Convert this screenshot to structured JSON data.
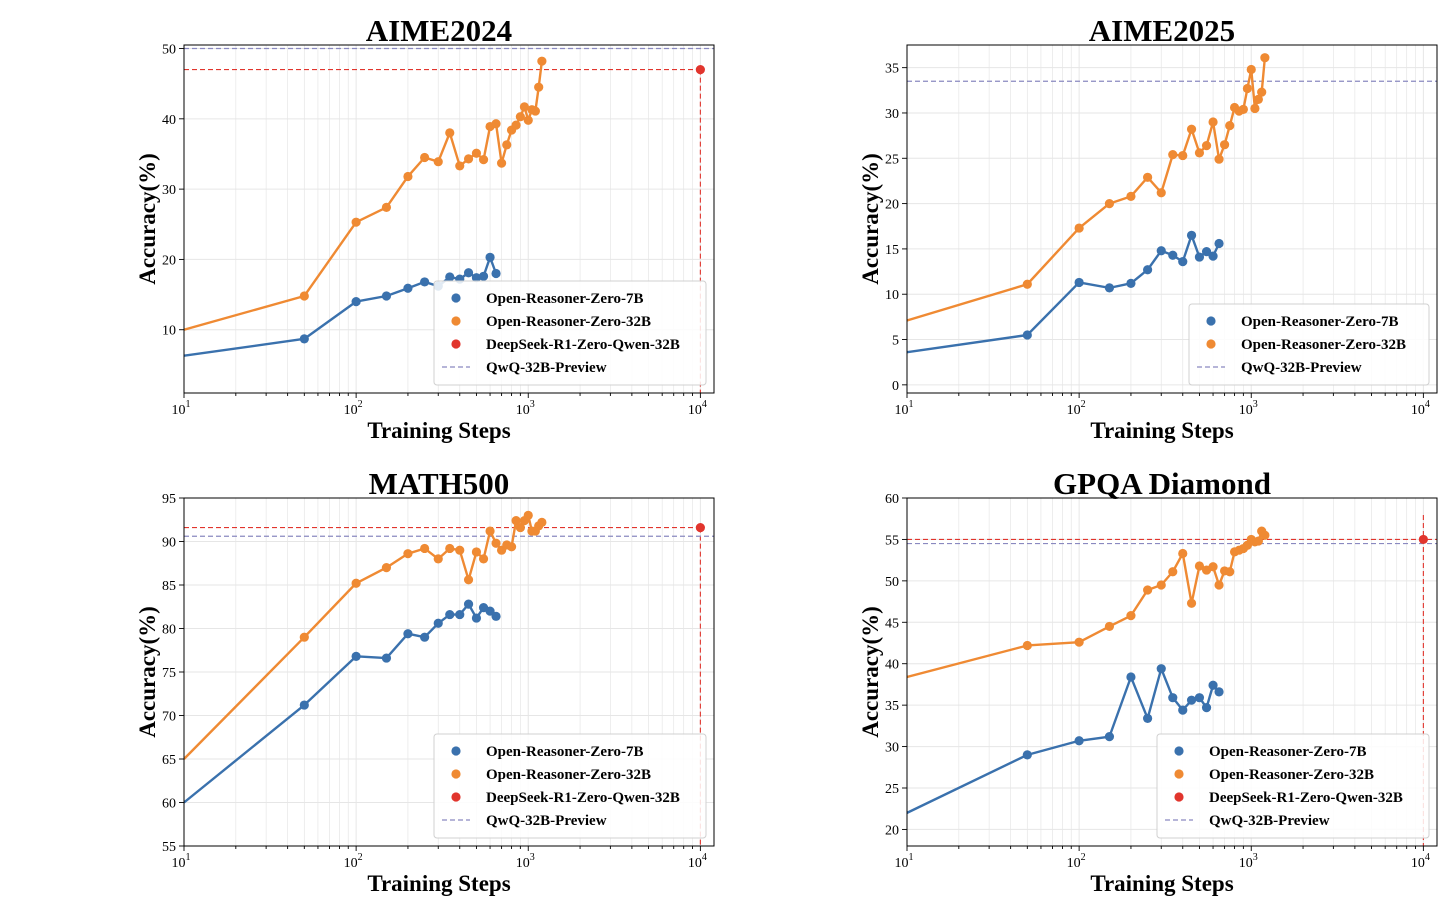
{
  "colors": {
    "blue": "#3a71ad",
    "orange": "#ef8a33",
    "red": "#e1352d",
    "qwq": "#8a89c0",
    "grid": "#e6e6e6"
  },
  "chart_data": [
    {
      "type": "line",
      "title": "AIME2024",
      "xlabel": "Training Steps",
      "ylabel": "Accuracy(%)",
      "xscale": "log",
      "xlim": [
        10,
        12000
      ],
      "ylim": [
        1,
        50.5
      ],
      "yticks": [
        10,
        20,
        30,
        40,
        50
      ],
      "legend_loc": "bottom-right",
      "series": [
        {
          "name": "Open-Reasoner-Zero-7B",
          "color": "blue",
          "start": [
            10,
            6.3
          ],
          "x": [
            50,
            100,
            150,
            200,
            250,
            300,
            350,
            400,
            450,
            500,
            550,
            600,
            650
          ],
          "y": [
            8.7,
            14.0,
            14.8,
            15.9,
            16.8,
            16.2,
            17.5,
            17.2,
            18.1,
            17.4,
            17.6,
            20.3,
            18.0
          ]
        },
        {
          "name": "Open-Reasoner-Zero-32B",
          "color": "orange",
          "start": [
            10,
            10.0
          ],
          "x": [
            50,
            100,
            150,
            200,
            250,
            300,
            350,
            400,
            450,
            500,
            550,
            600,
            650,
            700,
            750,
            800,
            850,
            900,
            950,
            1000,
            1050,
            1100,
            1150,
            1200
          ],
          "y": [
            14.8,
            25.3,
            27.4,
            31.8,
            34.5,
            33.9,
            38.0,
            33.3,
            34.3,
            35.1,
            34.2,
            38.9,
            39.3,
            33.7,
            36.3,
            38.4,
            39.1,
            40.3,
            41.7,
            39.8,
            41.3,
            41.1,
            44.5,
            48.2
          ]
        },
        {
          "name": "DeepSeek-R1-Zero-Qwen-32B",
          "color": "red",
          "x": [
            10000
          ],
          "y": [
            47.0
          ],
          "ref": "both"
        },
        {
          "name": "QwQ-32B-Preview",
          "color": "qwq",
          "hline": 50.0
        }
      ]
    },
    {
      "type": "line",
      "title": "AIME2025",
      "xlabel": "Training Steps",
      "ylabel": "Accuracy(%)",
      "xscale": "log",
      "xlim": [
        10,
        12000
      ],
      "ylim": [
        -0.9,
        37.5
      ],
      "yticks": [
        0,
        5,
        10,
        15,
        20,
        25,
        30,
        35
      ],
      "legend_loc": "bottom-right",
      "series": [
        {
          "name": "Open-Reasoner-Zero-7B",
          "color": "blue",
          "start": [
            10,
            3.6
          ],
          "x": [
            50,
            100,
            150,
            200,
            250,
            300,
            350,
            400,
            450,
            500,
            550,
            600,
            650
          ],
          "y": [
            5.5,
            11.3,
            10.7,
            11.2,
            12.7,
            14.8,
            14.3,
            13.6,
            16.5,
            14.1,
            14.7,
            14.2,
            15.6
          ]
        },
        {
          "name": "Open-Reasoner-Zero-32B",
          "color": "orange",
          "start": [
            10,
            7.1
          ],
          "x": [
            50,
            100,
            150,
            200,
            250,
            300,
            350,
            400,
            450,
            500,
            550,
            600,
            650,
            700,
            750,
            800,
            850,
            900,
            950,
            1000,
            1050,
            1100,
            1150,
            1200
          ],
          "y": [
            11.1,
            17.3,
            20.0,
            20.8,
            22.9,
            21.2,
            25.4,
            25.3,
            28.2,
            25.6,
            26.4,
            29.0,
            24.9,
            26.5,
            28.6,
            30.6,
            30.2,
            30.4,
            32.7,
            34.8,
            30.5,
            31.5,
            32.3,
            36.1
          ]
        },
        {
          "name": "QwQ-32B-Preview",
          "color": "qwq",
          "hline": 33.5
        }
      ]
    },
    {
      "type": "line",
      "title": "MATH500",
      "xlabel": "Training Steps",
      "ylabel": "Accuracy(%)",
      "xscale": "log",
      "xlim": [
        10,
        12000
      ],
      "ylim": [
        55,
        95
      ],
      "yticks": [
        55,
        60,
        65,
        70,
        75,
        80,
        85,
        90,
        95
      ],
      "legend_loc": "bottom-right",
      "series": [
        {
          "name": "Open-Reasoner-Zero-7B",
          "color": "blue",
          "start": [
            10,
            60.0
          ],
          "x": [
            50,
            100,
            150,
            200,
            250,
            300,
            350,
            400,
            450,
            500,
            550,
            600,
            650
          ],
          "y": [
            71.2,
            76.8,
            76.6,
            79.4,
            79.0,
            80.6,
            81.6,
            81.6,
            82.8,
            81.2,
            82.4,
            82.0,
            81.4
          ]
        },
        {
          "name": "Open-Reasoner-Zero-32B",
          "color": "orange",
          "start": [
            10,
            65.0
          ],
          "x": [
            50,
            100,
            150,
            200,
            250,
            300,
            350,
            400,
            450,
            500,
            550,
            600,
            650,
            700,
            750,
            800,
            850,
            900,
            950,
            1000,
            1050,
            1100,
            1150,
            1200
          ],
          "y": [
            79.0,
            85.2,
            87.0,
            88.6,
            89.2,
            88.0,
            89.2,
            89.0,
            85.6,
            88.8,
            88.0,
            91.2,
            89.8,
            89.0,
            89.6,
            89.4,
            92.4,
            91.6,
            92.4,
            93.0,
            91.2,
            91.2,
            91.8,
            92.2
          ]
        },
        {
          "name": "DeepSeek-R1-Zero-Qwen-32B",
          "color": "red",
          "x": [
            10000
          ],
          "y": [
            91.6
          ],
          "ref": "both"
        },
        {
          "name": "QwQ-32B-Preview",
          "color": "qwq",
          "hline": 90.6
        }
      ]
    },
    {
      "type": "line",
      "title": "GPQA Diamond",
      "xlabel": "Training Steps",
      "ylabel": "Accuracy(%)",
      "xscale": "log",
      "xlim": [
        10,
        12000
      ],
      "ylim": [
        18,
        60
      ],
      "yticks": [
        20,
        25,
        30,
        35,
        40,
        45,
        50,
        55,
        60
      ],
      "legend_loc": "bottom-right",
      "series": [
        {
          "name": "Open-Reasoner-Zero-7B",
          "color": "blue",
          "start": [
            10,
            22.0
          ],
          "x": [
            50,
            100,
            150,
            200,
            250,
            300,
            350,
            400,
            450,
            500,
            550,
            600,
            650
          ],
          "y": [
            29.0,
            30.7,
            31.2,
            38.4,
            33.4,
            39.4,
            35.9,
            34.4,
            35.6,
            35.9,
            34.7,
            37.4,
            36.6
          ]
        },
        {
          "name": "Open-Reasoner-Zero-32B",
          "color": "orange",
          "start": [
            10,
            38.4
          ],
          "x": [
            50,
            100,
            150,
            200,
            250,
            300,
            350,
            400,
            450,
            500,
            550,
            600,
            650,
            700,
            750,
            800,
            850,
            900,
            950,
            1000,
            1050,
            1100,
            1150,
            1200
          ],
          "y": [
            42.2,
            42.6,
            44.5,
            45.8,
            48.9,
            49.5,
            51.1,
            53.3,
            47.3,
            51.8,
            51.3,
            51.7,
            49.5,
            51.2,
            51.1,
            53.5,
            53.7,
            53.9,
            54.3,
            55.0,
            54.7,
            54.8,
            56.0,
            55.5
          ]
        },
        {
          "name": "DeepSeek-R1-Zero-Qwen-32B",
          "color": "red",
          "x": [
            10000
          ],
          "y": [
            55.0
          ],
          "ref": "vertical"
        },
        {
          "name": "QwQ-32B-Preview",
          "color": "qwq",
          "hline": 54.5
        }
      ]
    }
  ]
}
